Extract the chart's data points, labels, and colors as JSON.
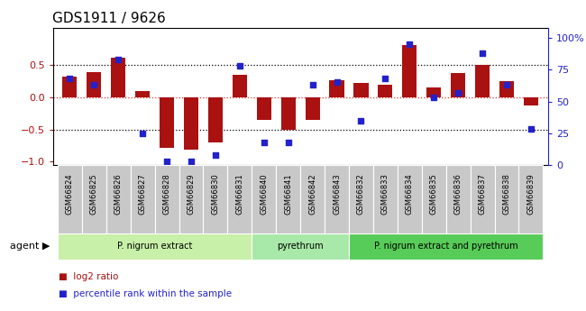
{
  "title": "GDS1911 / 9626",
  "samples": [
    "GSM66824",
    "GSM66825",
    "GSM66826",
    "GSM66827",
    "GSM66828",
    "GSM66829",
    "GSM66830",
    "GSM66831",
    "GSM66840",
    "GSM66841",
    "GSM66842",
    "GSM66843",
    "GSM66832",
    "GSM66833",
    "GSM66834",
    "GSM66835",
    "GSM66836",
    "GSM66837",
    "GSM66838",
    "GSM66839"
  ],
  "log2_ratio": [
    0.33,
    0.4,
    0.62,
    0.1,
    -0.78,
    -0.82,
    -0.7,
    0.35,
    -0.35,
    -0.5,
    -0.35,
    0.27,
    0.22,
    0.2,
    0.82,
    0.15,
    0.38,
    0.5,
    0.25,
    -0.12
  ],
  "pct_rank": [
    68,
    63,
    83,
    25,
    3,
    3,
    8,
    78,
    18,
    18,
    63,
    65,
    35,
    68,
    95,
    53,
    57,
    88,
    63,
    28
  ],
  "groups": [
    {
      "label": "P. nigrum extract",
      "start": 0,
      "end": 8,
      "color": "#c8f0a8"
    },
    {
      "label": "pyrethrum",
      "start": 8,
      "end": 12,
      "color": "#a8e8a8"
    },
    {
      "label": "P. nigrum extract and pyrethrum",
      "start": 12,
      "end": 20,
      "color": "#58cc58"
    }
  ],
  "bar_color": "#aa1111",
  "dot_color": "#2222cc",
  "ylim_left": [
    -1.05,
    1.08
  ],
  "ylim_right": [
    0,
    108
  ],
  "yticks_left": [
    -1,
    -0.5,
    0,
    0.5
  ],
  "yticks_right": [
    0,
    25,
    50,
    75,
    100
  ],
  "hlines": [
    -0.5,
    0.0,
    0.5
  ],
  "hline_colors": [
    "black",
    "#dd3333",
    "black"
  ],
  "legend_items": [
    {
      "label": "log2 ratio",
      "color": "#aa1111"
    },
    {
      "label": "percentile rank within the sample",
      "color": "#2222cc"
    }
  ],
  "agent_label": "agent",
  "tick_bg_color": "#c8c8c8",
  "agent_bg_color": "#e0e0e0"
}
